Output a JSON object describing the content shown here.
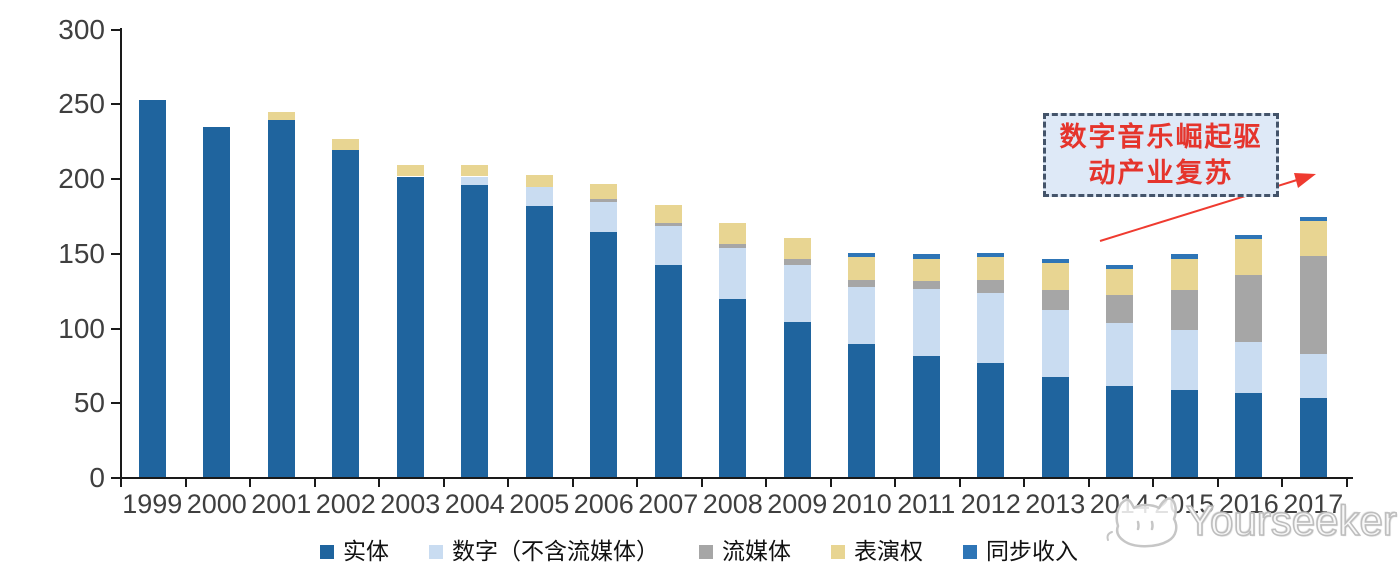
{
  "chart_data": {
    "type": "bar",
    "stacked": true,
    "title": "",
    "xlabel": "",
    "ylabel": "",
    "ylim": [
      0,
      300
    ],
    "yticks": [
      0,
      50,
      100,
      150,
      200,
      250,
      300
    ],
    "grid": false,
    "legend_position": "bottom",
    "categories": [
      "1999",
      "2000",
      "2001",
      "2002",
      "2003",
      "2004",
      "2005",
      "2006",
      "2007",
      "2008",
      "2009",
      "2010",
      "2011",
      "2012",
      "2013",
      "2014",
      "2015",
      "2016",
      "2017"
    ],
    "series": [
      {
        "name": "实体",
        "color": "#1F649E",
        "values": [
          252,
          234,
          239,
          219,
          201,
          195,
          181,
          164,
          142,
          119,
          104,
          89,
          81,
          76,
          67,
          61,
          58,
          56,
          53
        ]
      },
      {
        "name": "数字（不含流媒体）",
        "color": "#C9DCF1",
        "values": [
          0,
          0,
          0,
          0,
          0,
          6,
          13,
          20,
          26,
          34,
          38,
          38,
          45,
          47,
          45,
          42,
          40,
          34,
          29
        ]
      },
      {
        "name": "流媒体",
        "color": "#A6A6A6",
        "values": [
          0,
          0,
          0,
          0,
          0,
          0,
          0,
          2,
          2,
          3,
          4,
          5,
          5,
          9,
          13,
          19,
          27,
          45,
          66
        ]
      },
      {
        "name": "表演权",
        "color": "#E8D592",
        "values": [
          0,
          0,
          5,
          7,
          8,
          8,
          8,
          10,
          12,
          14,
          14,
          15,
          15,
          15,
          18,
          17,
          21,
          24,
          23
        ]
      },
      {
        "name": "同步收入",
        "color": "#2E75B6",
        "values": [
          0,
          0,
          0,
          0,
          0,
          0,
          0,
          0,
          0,
          0,
          0,
          3,
          3,
          3,
          3,
          3,
          3,
          3,
          3
        ]
      }
    ]
  },
  "annotation": {
    "line1": "数字音乐崛起驱",
    "line2": "动产业复苏",
    "text_color": "#E5342C",
    "box_fill": "#DEE9F7",
    "box_border": "#44546A",
    "arrow_color": "#EF3B30"
  },
  "watermark": {
    "text": "Yourseeker",
    "icon": "cat-logo-icon"
  }
}
